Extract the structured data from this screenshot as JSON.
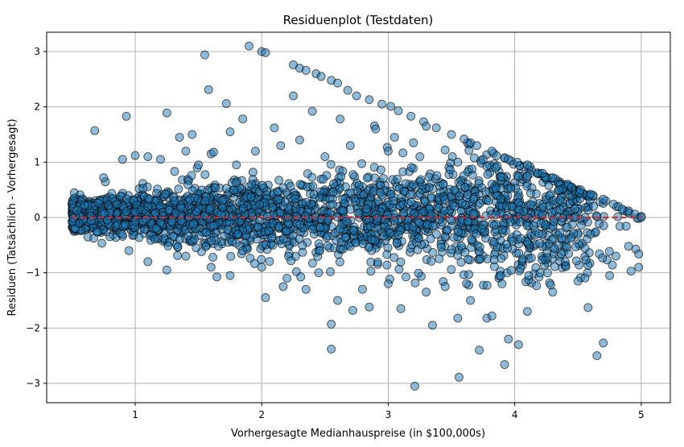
{
  "chart_data": {
    "type": "scatter",
    "title": "Residuenplot (Testdaten)",
    "xlabel": "Vorhergesagte Medianhauspreise (in $100,000s)",
    "ylabel": "Residuen (Tatsächlich - Vorhergesagt)",
    "xlim": [
      0.3,
      5.23
    ],
    "ylim": [
      -3.35,
      3.35
    ],
    "xticks": [
      1,
      2,
      3,
      4,
      5
    ],
    "yticks": [
      -3,
      -2,
      -1,
      0,
      1,
      2,
      3
    ],
    "xtick_labels": [
      "1",
      "2",
      "3",
      "4",
      "5"
    ],
    "ytick_labels": [
      "−3",
      "−2",
      "−1",
      "0",
      "1",
      "2",
      "3"
    ],
    "grid": true,
    "reference_line": {
      "y": 0,
      "style": "dashed",
      "color": "#d62728"
    },
    "marker_color": "#1f77b4",
    "points": [
      [
        0.52,
        0.35
      ],
      [
        0.68,
        1.57
      ],
      [
        0.93,
        1.83
      ],
      [
        1.25,
        1.89
      ],
      [
        1.55,
        2.94
      ],
      [
        1.58,
        2.31
      ],
      [
        1.72,
        2.06
      ],
      [
        1.9,
        3.1
      ],
      [
        2.0,
        3.0
      ],
      [
        2.03,
        2.98
      ],
      [
        2.25,
        2.76
      ],
      [
        2.3,
        2.7
      ],
      [
        2.35,
        2.66
      ],
      [
        2.43,
        2.6
      ],
      [
        2.47,
        2.55
      ],
      [
        2.55,
        2.48
      ],
      [
        2.6,
        2.43
      ],
      [
        2.68,
        2.3
      ],
      [
        2.75,
        2.2
      ],
      [
        2.85,
        2.13
      ],
      [
        2.95,
        2.05
      ],
      [
        3.02,
        2.01
      ],
      [
        3.08,
        1.93
      ],
      [
        3.18,
        1.83
      ],
      [
        3.28,
        1.73
      ],
      [
        3.38,
        1.62
      ],
      [
        3.5,
        1.5
      ],
      [
        3.6,
        1.42
      ],
      [
        3.7,
        1.3
      ],
      [
        3.82,
        1.2
      ],
      [
        3.92,
        1.08
      ],
      [
        4.02,
        1.0
      ],
      [
        4.12,
        0.92
      ],
      [
        4.22,
        0.8
      ],
      [
        4.32,
        0.7
      ],
      [
        4.42,
        0.6
      ],
      [
        4.52,
        0.5
      ],
      [
        4.62,
        0.4
      ],
      [
        4.72,
        0.3
      ],
      [
        4.82,
        0.2
      ],
      [
        4.9,
        0.12
      ],
      [
        4.95,
        0.06
      ],
      [
        5.0,
        0.02
      ],
      [
        5.0,
        0.0
      ],
      [
        3.3,
        1.65
      ],
      [
        3.65,
        1.35
      ],
      [
        3.95,
        1.05
      ],
      [
        4.3,
        0.72
      ],
      [
        4.6,
        0.42
      ],
      [
        4.78,
        0.24
      ],
      [
        1.35,
        1.45
      ],
      [
        1.45,
        1.5
      ],
      [
        1.6,
        1.15
      ],
      [
        1.75,
        1.55
      ],
      [
        1.85,
        1.78
      ],
      [
        2.1,
        1.62
      ],
      [
        2.25,
        2.2
      ],
      [
        2.4,
        1.92
      ],
      [
        2.62,
        1.78
      ],
      [
        2.9,
        1.6
      ],
      [
        3.05,
        1.45
      ],
      [
        3.2,
        1.35
      ],
      [
        3.45,
        1.22
      ],
      [
        3.75,
        1.05
      ],
      [
        4.1,
        0.95
      ],
      [
        4.45,
        0.55
      ],
      [
        4.7,
        0.33
      ],
      [
        4.85,
        0.15
      ],
      [
        2.03,
        -1.45
      ],
      [
        2.17,
        -1.25
      ],
      [
        2.35,
        -1.3
      ],
      [
        2.55,
        -2.38
      ],
      [
        2.55,
        -1.93
      ],
      [
        2.72,
        -1.68
      ],
      [
        2.85,
        -1.62
      ],
      [
        3.1,
        -1.65
      ],
      [
        3.21,
        -3.05
      ],
      [
        3.35,
        -1.95
      ],
      [
        3.55,
        -1.82
      ],
      [
        3.56,
        -2.89
      ],
      [
        3.72,
        -2.4
      ],
      [
        3.78,
        -1.82
      ],
      [
        3.82,
        -1.78
      ],
      [
        3.92,
        -2.66
      ],
      [
        3.95,
        -2.2
      ],
      [
        4.03,
        -2.3
      ],
      [
        4.1,
        -1.7
      ],
      [
        4.58,
        -1.63
      ],
      [
        4.65,
        -2.5
      ],
      [
        4.7,
        -2.27
      ],
      [
        4.3,
        -1.35
      ],
      [
        4.5,
        -1.15
      ],
      [
        4.75,
        -1.05
      ],
      [
        4.92,
        -0.97
      ],
      [
        4.98,
        -0.66
      ],
      [
        4.9,
        -0.52
      ],
      [
        4.8,
        -0.7
      ],
      [
        4.6,
        -0.3
      ],
      [
        2.45,
        -1.0
      ],
      [
        2.6,
        -1.5
      ],
      [
        3.0,
        -1.2
      ],
      [
        3.3,
        -1.35
      ],
      [
        3.45,
        -1.25
      ],
      [
        3.65,
        -1.5
      ],
      [
        3.9,
        -1.2
      ],
      [
        4.2,
        -1.0
      ],
      [
        4.4,
        -0.8
      ],
      [
        0.75,
        0.72
      ],
      [
        0.9,
        1.05
      ],
      [
        1.0,
        1.12
      ],
      [
        1.1,
        1.1
      ],
      [
        1.2,
        1.05
      ],
      [
        1.4,
        1.2
      ],
      [
        1.5,
        0.95
      ],
      [
        1.62,
        1.18
      ],
      [
        1.8,
        0.95
      ],
      [
        1.95,
        1.2
      ],
      [
        2.15,
        1.3
      ],
      [
        2.3,
        1.4
      ],
      [
        2.5,
        1.1
      ],
      [
        2.7,
        1.3
      ],
      [
        3.0,
        1.2
      ],
      [
        3.25,
        1.1
      ],
      [
        3.55,
        1.0
      ],
      [
        3.85,
        0.9
      ],
      [
        4.1,
        0.75
      ],
      [
        4.35,
        0.5
      ],
      [
        0.8,
        -0.35
      ],
      [
        0.95,
        -0.6
      ],
      [
        1.1,
        -0.8
      ],
      [
        1.25,
        -0.95
      ],
      [
        1.4,
        -0.7
      ],
      [
        1.6,
        -0.9
      ],
      [
        1.75,
        -1.05
      ],
      [
        1.85,
        -0.6
      ],
      [
        2.0,
        -0.9
      ],
      [
        2.2,
        -1.1
      ]
    ]
  }
}
